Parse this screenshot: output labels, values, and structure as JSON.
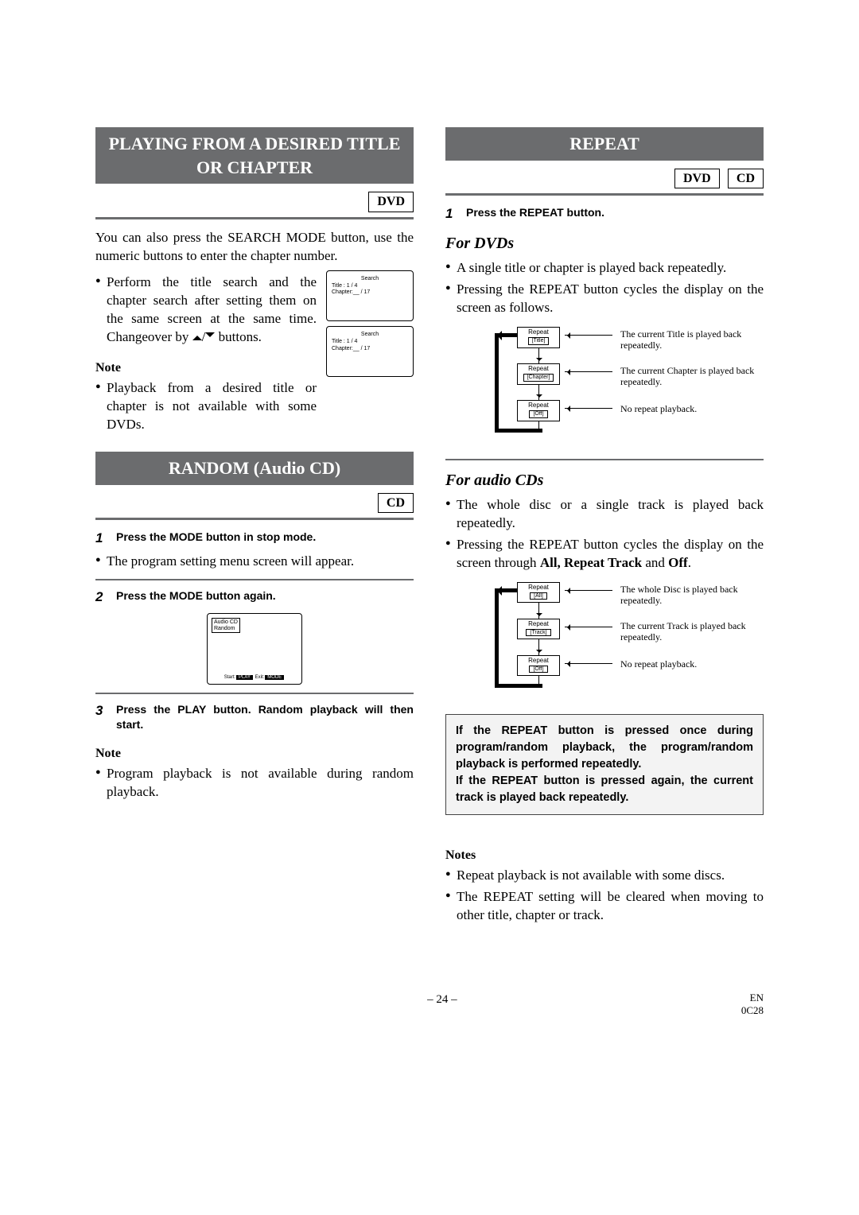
{
  "left": {
    "sec1": {
      "title": "PLAYING FROM A DESIRED TITLE OR CHAPTER",
      "badge": "DVD",
      "intro": "You can also press the SEARCH MODE button, use the numeric buttons to enter the chapter number.",
      "bullet1a": "Perform the title search and the chapter search after setting them on the same screen at the same time. Changeover by ",
      "bullet1b": " buttons.",
      "noteHead": "Note",
      "noteBullet": "Playback from a desired title or chapter is not available with some DVDs.",
      "osd": {
        "header": "Search",
        "l1": "Title        :   1 / 4",
        "l2": "Chapter:__ / 17"
      }
    },
    "sec2": {
      "title": "RANDOM (Audio CD)",
      "badge": "CD",
      "step1": {
        "n": "1",
        "t": "Press the MODE button in stop mode."
      },
      "after1": "The program setting menu screen will appear.",
      "step2": {
        "n": "2",
        "t": "Press the MODE button again."
      },
      "osd": {
        "corner1": "Audio CD",
        "corner2": "Random",
        "b_start": "Start:",
        "b_play": "PLAY",
        "b_exit": " Exit:",
        "b_mode": "MODE"
      },
      "step3": {
        "n": "3",
        "t": "Press the PLAY button. Random playback will then start."
      },
      "noteHead": "Note",
      "noteBullet": "Program playback is not available during random playback."
    }
  },
  "right": {
    "title": "REPEAT",
    "badges": [
      "DVD",
      "CD"
    ],
    "step1": {
      "n": "1",
      "t": "Press the REPEAT button."
    },
    "dvd": {
      "heading": "For DVDs",
      "b1": "A single title or chapter is played back repeatedly.",
      "b2": "Pressing the REPEAT button cycles the display on the screen as follows.",
      "boxes": [
        {
          "top": "Repeat",
          "sub": "[Title]",
          "desc": "The current Title is played back repeatedly."
        },
        {
          "top": "Repeat",
          "sub": "[Chapter]",
          "desc": "The current Chapter is played back repeatedly."
        },
        {
          "top": "Repeat",
          "sub": "[Off]",
          "desc": "No repeat playback."
        }
      ]
    },
    "cd": {
      "heading": "For audio CDs",
      "b1": "The whole disc or a single track is played back repeatedly.",
      "b2a": "Pressing the REPEAT button cycles the display on the screen through ",
      "b2b": "All, Repeat Track",
      "b2c": " and ",
      "b2d": "Off",
      "b2e": ".",
      "boxes": [
        {
          "top": "Repeat",
          "sub": "[All]",
          "desc": "The whole Disc is played back repeatedly."
        },
        {
          "top": "Repeat",
          "sub": "[Track]",
          "desc": "The current Track is played back repeatedly."
        },
        {
          "top": "Repeat",
          "sub": "[Off]",
          "desc": "No repeat playback."
        }
      ]
    },
    "callout": "If the REPEAT button is pressed once during program/random playback, the program/random playback is performed repeatedly.\nIf the REPEAT button is pressed again, the current track is played back repeatedly.",
    "notesHead": "Notes",
    "notes": [
      "Repeat playback is not available with some discs.",
      "The REPEAT setting will be cleared when moving to other title, chapter or track."
    ]
  },
  "footer": {
    "page": "– 24 –",
    "en": "EN",
    "code": "0C28"
  }
}
